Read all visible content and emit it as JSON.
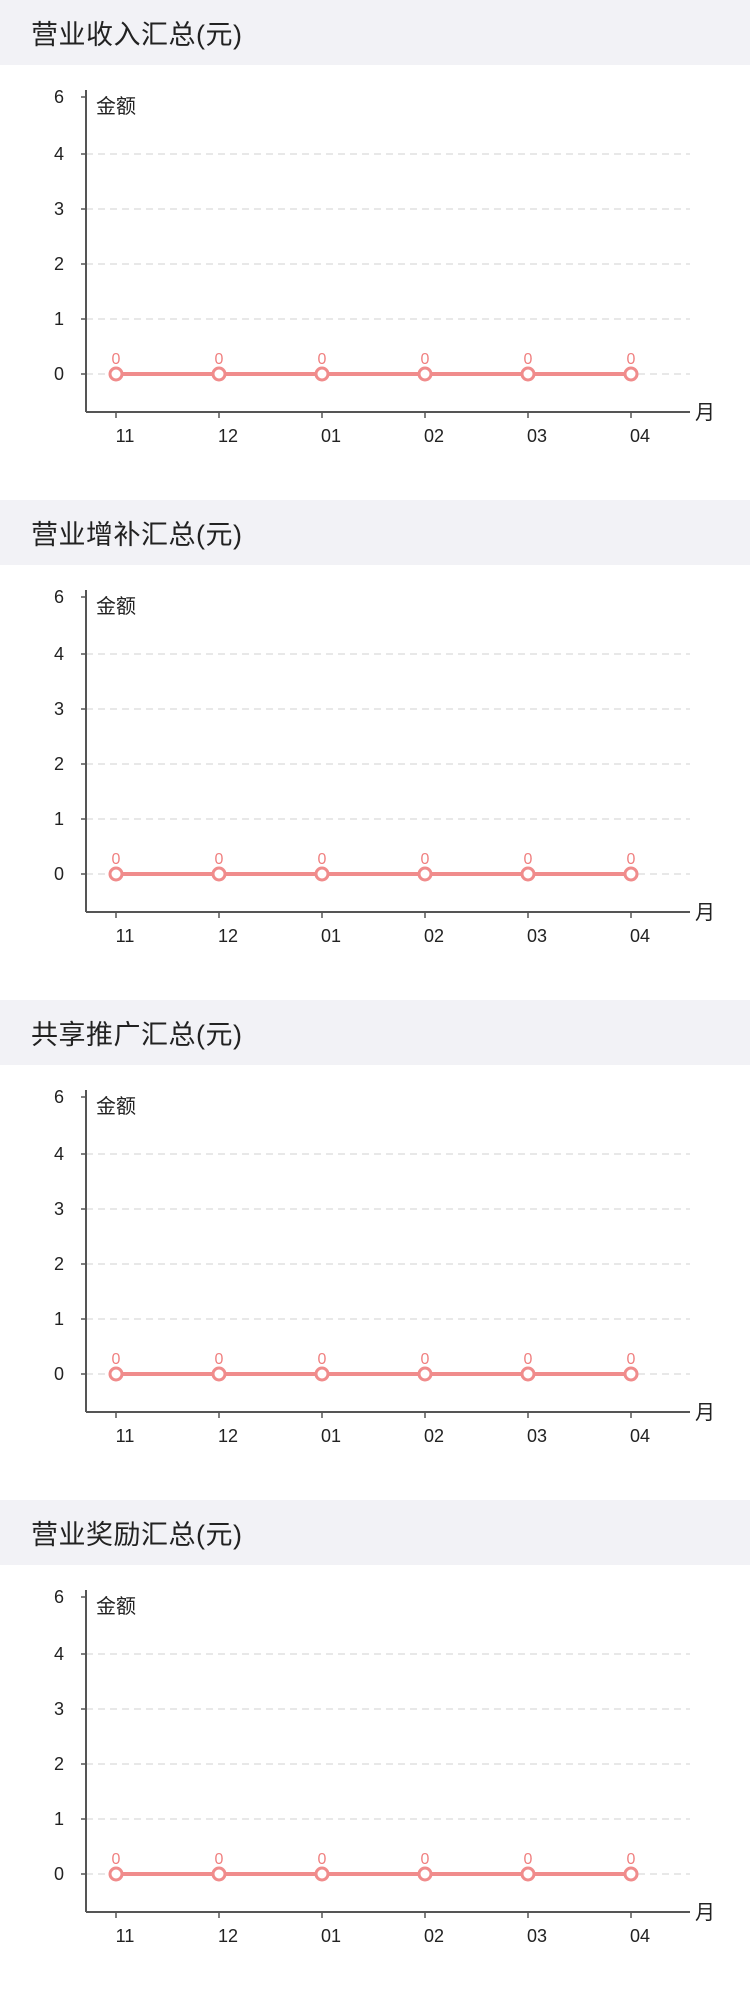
{
  "colors": {
    "line": "#f08c8c",
    "axis": "#555555",
    "grid": "#d0d0d0",
    "header_bg": "#f2f2f6"
  },
  "chart_data": [
    {
      "type": "line",
      "title": "营业收入汇总(元)",
      "ylabel": "金额",
      "xlabel": "月",
      "categories": [
        "11",
        "12",
        "01",
        "02",
        "03",
        "04"
      ],
      "yticks": [
        "0",
        "1",
        "2",
        "3",
        "4",
        "6"
      ],
      "series": [
        {
          "values": [
            0,
            0,
            0,
            0,
            0,
            0
          ]
        }
      ],
      "data_labels": [
        "0",
        "0",
        "0",
        "0",
        "0",
        "0"
      ],
      "grid": true
    },
    {
      "type": "line",
      "title": "营业增补汇总(元)",
      "ylabel": "金额",
      "xlabel": "月",
      "categories": [
        "11",
        "12",
        "01",
        "02",
        "03",
        "04"
      ],
      "yticks": [
        "0",
        "1",
        "2",
        "3",
        "4",
        "6"
      ],
      "series": [
        {
          "values": [
            0,
            0,
            0,
            0,
            0,
            0
          ]
        }
      ],
      "data_labels": [
        "0",
        "0",
        "0",
        "0",
        "0",
        "0"
      ],
      "grid": true
    },
    {
      "type": "line",
      "title": "共享推广汇总(元)",
      "ylabel": "金额",
      "xlabel": "月",
      "categories": [
        "11",
        "12",
        "01",
        "02",
        "03",
        "04"
      ],
      "yticks": [
        "0",
        "1",
        "2",
        "3",
        "4",
        "6"
      ],
      "series": [
        {
          "values": [
            0,
            0,
            0,
            0,
            0,
            0
          ]
        }
      ],
      "data_labels": [
        "0",
        "0",
        "0",
        "0",
        "0",
        "0"
      ],
      "grid": true
    },
    {
      "type": "line",
      "title": "营业奖励汇总(元)",
      "ylabel": "金额",
      "xlabel": "月",
      "categories": [
        "11",
        "12",
        "01",
        "02",
        "03",
        "04"
      ],
      "yticks": [
        "0",
        "1",
        "2",
        "3",
        "4",
        "6"
      ],
      "series": [
        {
          "values": [
            0,
            0,
            0,
            0,
            0,
            0
          ]
        }
      ],
      "data_labels": [
        "0",
        "0",
        "0",
        "0",
        "0",
        "0"
      ],
      "grid": true
    }
  ]
}
